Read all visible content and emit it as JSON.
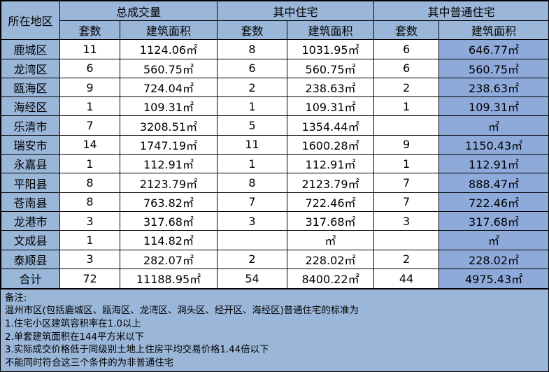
{
  "headers": {
    "region": "所在地区",
    "total": "总成交量",
    "residential": "其中住宅",
    "ordinary": "其中普通住宅",
    "sets": "套数",
    "area": "建筑面积"
  },
  "rows": [
    {
      "region": "鹿城区",
      "total_sets": "11",
      "total_area": "1124.06㎡",
      "res_sets": "8",
      "res_area": "1031.95㎡",
      "ord_sets": "6",
      "ord_area": "646.77㎡"
    },
    {
      "region": "龙湾区",
      "total_sets": "6",
      "total_area": "560.75㎡",
      "res_sets": "6",
      "res_area": "560.75㎡",
      "ord_sets": "6",
      "ord_area": "560.75㎡"
    },
    {
      "region": "瓯海区",
      "total_sets": "9",
      "total_area": "724.04㎡",
      "res_sets": "2",
      "res_area": "238.63㎡",
      "ord_sets": "2",
      "ord_area": "238.63㎡"
    },
    {
      "region": "海经区",
      "total_sets": "1",
      "total_area": "109.31㎡",
      "res_sets": "1",
      "res_area": "109.31㎡",
      "ord_sets": "1",
      "ord_area": "109.31㎡"
    },
    {
      "region": "乐清市",
      "total_sets": "7",
      "total_area": "3208.51㎡",
      "res_sets": "5",
      "res_area": "1354.44㎡",
      "ord_sets": "",
      "ord_area": "㎡"
    },
    {
      "region": "瑞安市",
      "total_sets": "14",
      "total_area": "1747.19㎡",
      "res_sets": "11",
      "res_area": "1600.28㎡",
      "ord_sets": "9",
      "ord_area": "1150.43㎡"
    },
    {
      "region": "永嘉县",
      "total_sets": "1",
      "total_area": "112.91㎡",
      "res_sets": "1",
      "res_area": "112.91㎡",
      "ord_sets": "1",
      "ord_area": "112.91㎡"
    },
    {
      "region": "平阳县",
      "total_sets": "8",
      "total_area": "2123.79㎡",
      "res_sets": "8",
      "res_area": "2123.79㎡",
      "ord_sets": "7",
      "ord_area": "888.47㎡"
    },
    {
      "region": "苍南县",
      "total_sets": "8",
      "total_area": "763.82㎡",
      "res_sets": "7",
      "res_area": "722.46㎡",
      "ord_sets": "7",
      "ord_area": "722.46㎡"
    },
    {
      "region": "龙港市",
      "total_sets": "3",
      "total_area": "317.68㎡",
      "res_sets": "3",
      "res_area": "317.68㎡",
      "ord_sets": "3",
      "ord_area": "317.68㎡"
    },
    {
      "region": "文成县",
      "total_sets": "1",
      "total_area": "114.82㎡",
      "res_sets": "",
      "res_area": "㎡",
      "ord_sets": "",
      "ord_area": "㎡"
    },
    {
      "region": "泰顺县",
      "total_sets": "3",
      "total_area": "282.07㎡",
      "res_sets": "2",
      "res_area": "228.02㎡",
      "ord_sets": "2",
      "ord_area": "228.02㎡"
    }
  ],
  "total_row": {
    "region": "合计",
    "total_sets": "72",
    "total_area": "11188.95㎡",
    "res_sets": "54",
    "res_area": "8400.22㎡",
    "ord_sets": "44",
    "ord_area": "4975.43㎡"
  },
  "notes": [
    "备注:",
    "温州市区(包括鹿城区、瓯海区、龙湾区、洞头区、经开区、海经区)普通住宅的标准为",
    "1.住宅小区建筑容积率在1.0以上",
    "2.单套建筑面积在144平方米以下",
    "3.实际成交价格低于同级别土地上住房平均交易价格1.44倍以下",
    "不能同时符合这三个条件的为非普通住宅"
  ]
}
